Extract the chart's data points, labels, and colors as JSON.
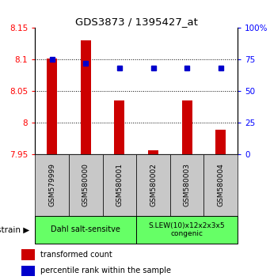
{
  "title": "GDS3873 / 1395427_at",
  "samples": [
    "GSM579999",
    "GSM580000",
    "GSM580001",
    "GSM580002",
    "GSM580003",
    "GSM580004"
  ],
  "red_values": [
    8.101,
    8.13,
    8.035,
    7.956,
    8.035,
    7.988
  ],
  "blue_values": [
    75,
    72,
    68,
    68,
    68,
    68
  ],
  "ylim_left": [
    7.95,
    8.15
  ],
  "ylim_right": [
    0,
    100
  ],
  "yticks_left": [
    7.95,
    8.0,
    8.05,
    8.1,
    8.15
  ],
  "yticks_right": [
    0,
    25,
    50,
    75,
    100
  ],
  "ytick_labels_left": [
    "7.95",
    "8",
    "8.05",
    "8.1",
    "8.15"
  ],
  "ytick_labels_right": [
    "0",
    "25",
    "50",
    "75",
    "100%"
  ],
  "group1_label": "Dahl salt-sensitve",
  "group2_label": "S.LEW(10)x12x2x3x5\ncongenic",
  "group1_indices": [
    0,
    1,
    2
  ],
  "group2_indices": [
    3,
    4,
    5
  ],
  "group_color": "#66ff66",
  "bar_color": "#cc0000",
  "dot_color": "#0000cc",
  "xlabel_left": "strain",
  "legend_red": "transformed count",
  "legend_blue": "percentile rank within the sample",
  "tick_area_color": "#c8c8c8",
  "bar_bottom": 7.95,
  "dot_size": 30,
  "gridline_ticks": [
    8.0,
    8.05,
    8.1
  ],
  "bar_width": 0.3
}
